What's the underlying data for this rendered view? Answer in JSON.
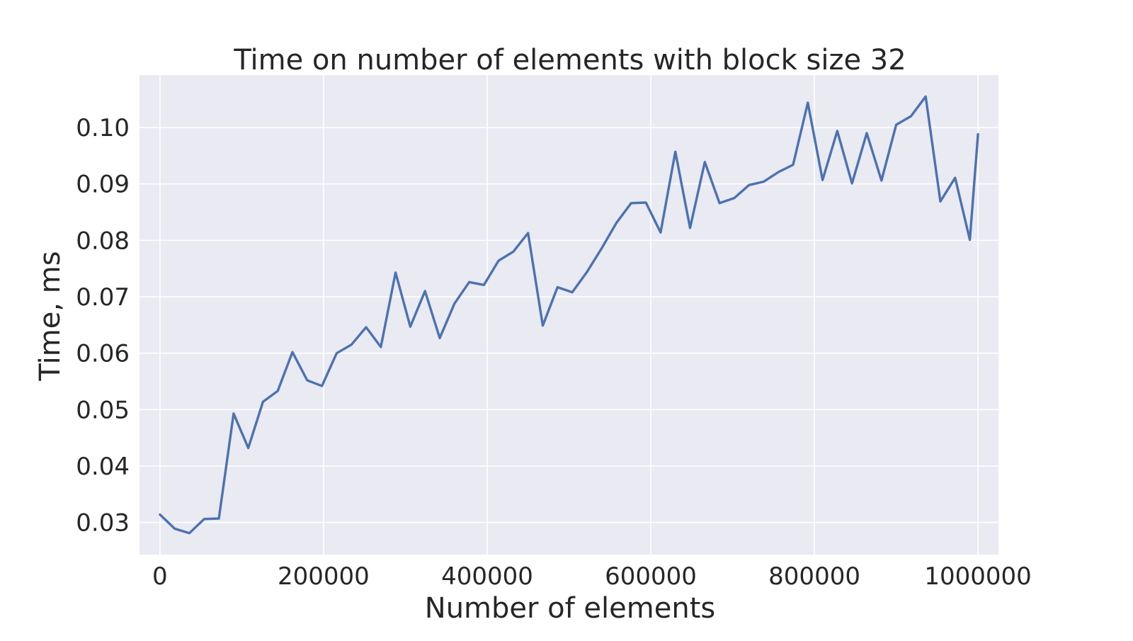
{
  "chart_data": {
    "type": "line",
    "title": "Time on number of elements with block size 32",
    "xlabel": "Number of elements",
    "ylabel": "Time, ms",
    "xlim": [
      -25000,
      1025000
    ],
    "ylim": [
      0.0243,
      0.1093
    ],
    "x_ticks": [
      {
        "value": 0,
        "label": "0"
      },
      {
        "value": 200000,
        "label": "200000"
      },
      {
        "value": 400000,
        "label": "400000"
      },
      {
        "value": 600000,
        "label": "600000"
      },
      {
        "value": 800000,
        "label": "800000"
      },
      {
        "value": 1000000,
        "label": "1000000"
      }
    ],
    "y_ticks": [
      {
        "value": 0.03,
        "label": "0.03"
      },
      {
        "value": 0.04,
        "label": "0.04"
      },
      {
        "value": 0.05,
        "label": "0.05"
      },
      {
        "value": 0.06,
        "label": "0.06"
      },
      {
        "value": 0.07,
        "label": "0.07"
      },
      {
        "value": 0.08,
        "label": "0.08"
      },
      {
        "value": 0.09,
        "label": "0.09"
      },
      {
        "value": 0.1,
        "label": "0.10"
      }
    ],
    "grid": true,
    "colors": {
      "background": "#eaeaf2",
      "grid": "#ffffff",
      "line": "#4c72b0",
      "text": "#262626"
    },
    "series": [
      {
        "x": [
          0,
          18000,
          36000,
          54000,
          72000,
          90000,
          108000,
          126000,
          144000,
          162000,
          180000,
          198000,
          216000,
          234000,
          252000,
          270000,
          288000,
          306000,
          324000,
          342000,
          360000,
          378000,
          396000,
          414000,
          432000,
          450000,
          468000,
          486000,
          504000,
          522000,
          540000,
          558000,
          576000,
          594000,
          612000,
          630000,
          648000,
          666000,
          684000,
          702000,
          720000,
          738000,
          756000,
          774000,
          792000,
          810000,
          828000,
          846000,
          864000,
          882000,
          900000,
          918000,
          936000,
          954000,
          972000,
          990000,
          1000000
        ],
        "y": [
          0.0314,
          0.0289,
          0.0281,
          0.0306,
          0.0307,
          0.0493,
          0.0432,
          0.0514,
          0.0533,
          0.0602,
          0.0552,
          0.0542,
          0.06,
          0.0615,
          0.0646,
          0.0611,
          0.0743,
          0.0647,
          0.071,
          0.0627,
          0.0688,
          0.0726,
          0.0721,
          0.0764,
          0.078,
          0.0813,
          0.0649,
          0.0717,
          0.0708,
          0.0744,
          0.0786,
          0.0831,
          0.0866,
          0.0867,
          0.0814,
          0.0957,
          0.0822,
          0.0939,
          0.0866,
          0.0875,
          0.0898,
          0.0904,
          0.0921,
          0.0934,
          0.1044,
          0.0907,
          0.0994,
          0.0901,
          0.099,
          0.0906,
          0.1005,
          0.102,
          0.1055,
          0.0869,
          0.0911,
          0.0801,
          0.0988
        ]
      }
    ]
  }
}
